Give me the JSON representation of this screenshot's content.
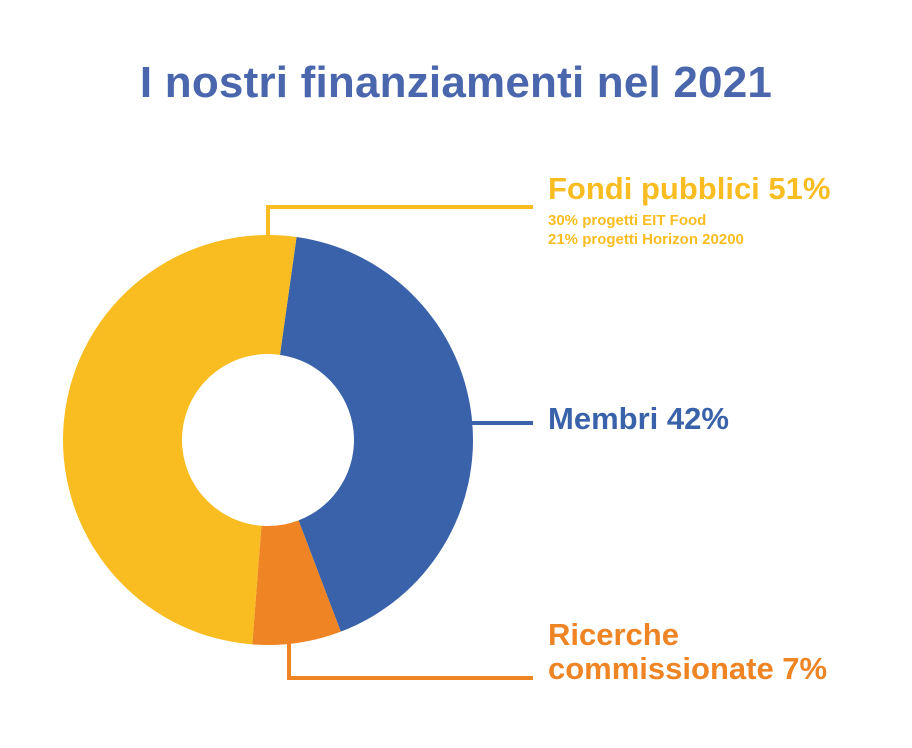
{
  "chart_data": {
    "type": "pie",
    "title": "I nostri finanziamenti nel 2021",
    "slices": [
      {
        "key": "membri",
        "label": "Membri 42%",
        "value": 42,
        "color": "#3a62aa"
      },
      {
        "key": "ricerche",
        "label": "Ricerche commissionate 7%",
        "label_lines": [
          "Ricerche",
          "commissionate 7%"
        ],
        "value": 7,
        "color": "#ef8424"
      },
      {
        "key": "fondi",
        "label": "Fondi pubblici 51%",
        "value": 51,
        "color": "#f9bd22",
        "details": [
          "30% progetti EIT Food",
          "21% progetti Horizon 20200"
        ]
      }
    ],
    "legend": "callouts-right"
  },
  "colors": {
    "title": "#4a66ad",
    "background": "#ffffff"
  }
}
